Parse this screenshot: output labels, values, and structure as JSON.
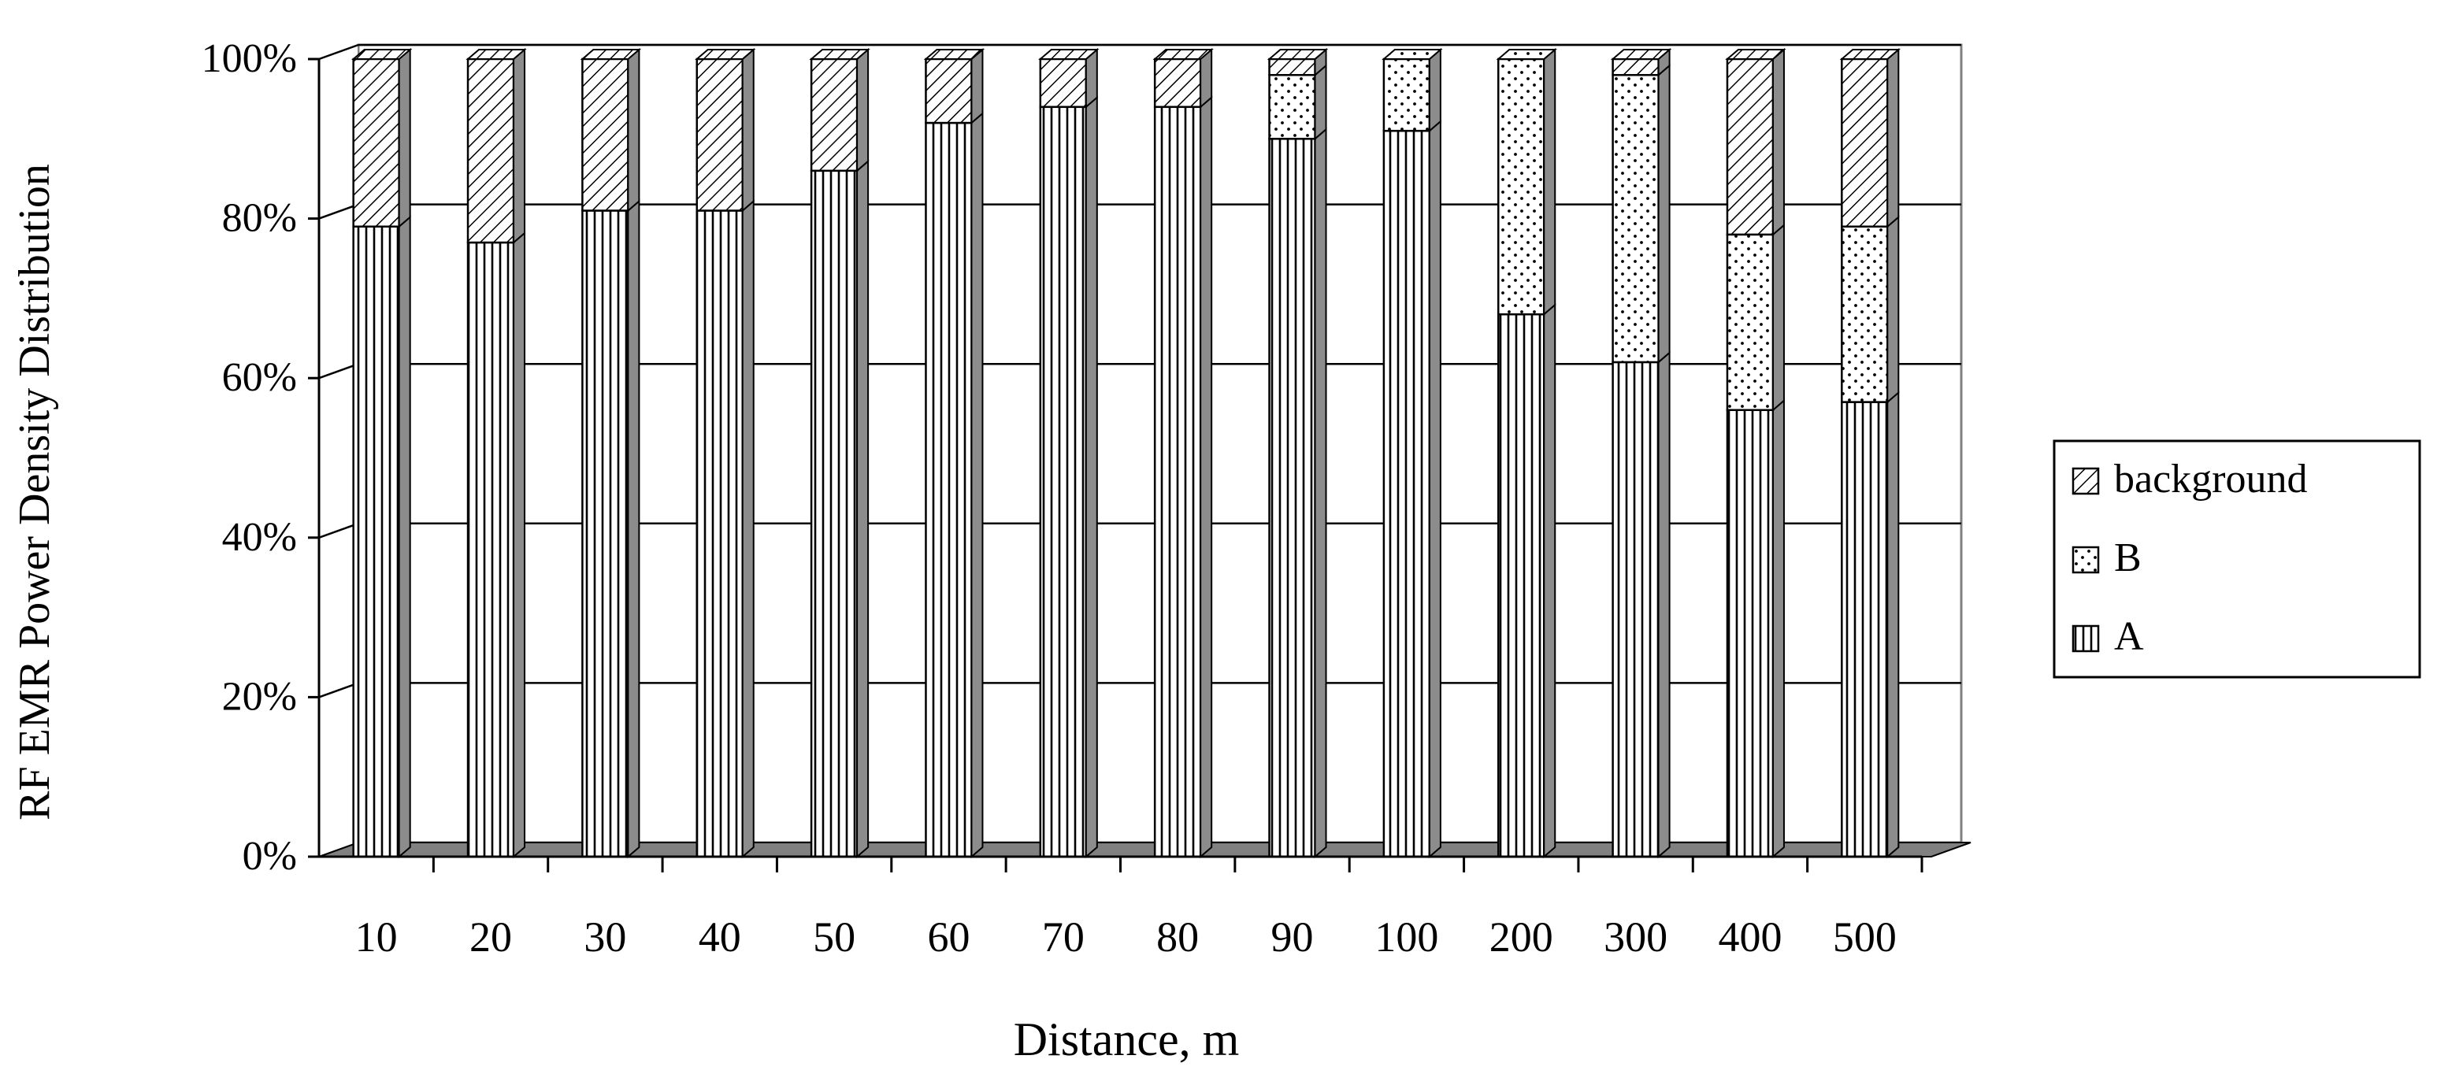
{
  "chart_data": {
    "type": "bar",
    "stacked": true,
    "three_d": true,
    "title": "",
    "xlabel": "Distance, m",
    "ylabel": "RF EMR Power Density Distribution",
    "ylim": [
      0,
      100
    ],
    "ytick_labels": [
      "0%",
      "20%",
      "40%",
      "60%",
      "80%",
      "100%"
    ],
    "categories": [
      "10",
      "20",
      "30",
      "40",
      "50",
      "60",
      "70",
      "80",
      "90",
      "100",
      "200",
      "300",
      "400",
      "500"
    ],
    "series": [
      {
        "name": "A",
        "pattern": "vertical-lines",
        "values": [
          79,
          77,
          81,
          81,
          86,
          92,
          94,
          94,
          90,
          91,
          68,
          62,
          56,
          57
        ]
      },
      {
        "name": "B",
        "pattern": "dots",
        "values": [
          0,
          0,
          0,
          0,
          0,
          0,
          0,
          0,
          8,
          9,
          32,
          36,
          22,
          22
        ]
      },
      {
        "name": "background",
        "pattern": "diagonal-hatch",
        "values": [
          21,
          23,
          19,
          19,
          14,
          8,
          6,
          6,
          2,
          0,
          0,
          2,
          22,
          21
        ]
      }
    ],
    "legend_order": [
      "background",
      "B",
      "A"
    ],
    "legend_position": "right",
    "grid": true,
    "colors": {
      "floor": "#808080",
      "line": "#000000",
      "background": "#ffffff"
    }
  }
}
